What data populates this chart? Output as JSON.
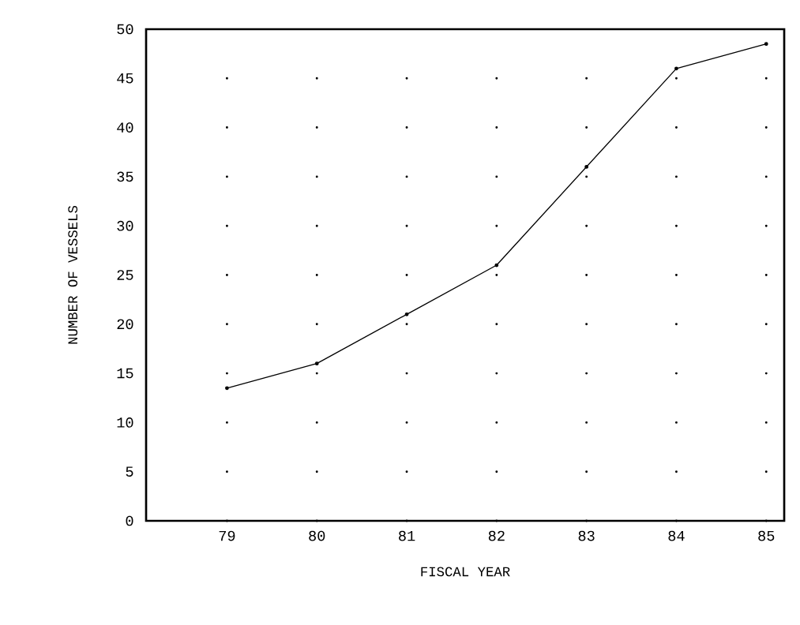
{
  "chart_data": {
    "type": "line",
    "xlabel": "FISCAL YEAR",
    "ylabel": "NUMBER OF VESSELS",
    "x": [
      79,
      80,
      81,
      82,
      83,
      84,
      85
    ],
    "values": [
      13.5,
      16,
      21,
      26,
      36,
      46,
      48.5
    ],
    "color": "#000000",
    "xlim": [
      78.1,
      85.2
    ],
    "ylim": [
      0,
      50
    ],
    "xticks": [
      79,
      80,
      81,
      82,
      83,
      84,
      85
    ],
    "yticks": [
      0,
      5,
      10,
      15,
      20,
      25,
      30,
      35,
      40,
      45,
      50
    ],
    "grid": true,
    "marker": "circle",
    "line_style": "solid"
  }
}
